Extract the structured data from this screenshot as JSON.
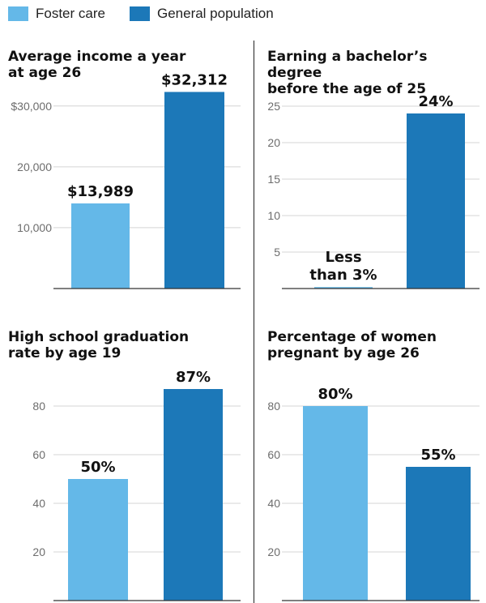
{
  "legend": {
    "items": [
      {
        "label": "Foster care",
        "color": "#64b8e8"
      },
      {
        "label": "General population",
        "color": "#1c78b8"
      }
    ]
  },
  "chart_data": [
    {
      "type": "bar",
      "title": "Average income a year at age 26",
      "title_lines": [
        "Average income a year",
        "at age 26"
      ],
      "categories": [
        "Foster care",
        "General population"
      ],
      "values": [
        13989,
        32312
      ],
      "data_labels": [
        [
          "$13,989"
        ],
        [
          "$32,312"
        ]
      ],
      "yticks": [
        {
          "value": 10000,
          "label": "10,000"
        },
        {
          "value": 20000,
          "label": "20,000"
        },
        {
          "value": 30000,
          "label": "$30,000"
        }
      ],
      "ylim": [
        0,
        36500
      ],
      "grid": true
    },
    {
      "type": "bar",
      "title": "Earning a bachelor’s degree before the age of 25",
      "title_lines": [
        "Earning a bachelor’s degree",
        "before the age of 25"
      ],
      "categories": [
        "Foster care",
        "General population"
      ],
      "values": [
        0.2,
        24
      ],
      "data_labels": [
        [
          "Less",
          "than 3%"
        ],
        [
          "24%"
        ]
      ],
      "yticks": [
        {
          "value": 5,
          "label": "5"
        },
        {
          "value": 10,
          "label": "10"
        },
        {
          "value": 15,
          "label": "15"
        },
        {
          "value": 20,
          "label": "20"
        },
        {
          "value": 25,
          "label": "25"
        }
      ],
      "ylim": [
        0,
        27
      ],
      "grid": true
    },
    {
      "type": "bar",
      "title": "High school graduation rate by age 19",
      "title_lines": [
        "High school graduation",
        "rate by age 19"
      ],
      "categories": [
        "Foster care",
        "General population"
      ],
      "values": [
        50,
        87
      ],
      "data_labels": [
        [
          "50%"
        ],
        [
          "87%"
        ]
      ],
      "yticks": [
        {
          "value": 20,
          "label": "20"
        },
        {
          "value": 40,
          "label": "40"
        },
        {
          "value": 60,
          "label": "60"
        },
        {
          "value": 80,
          "label": "80"
        }
      ],
      "ylim": [
        0,
        92
      ],
      "grid": true
    },
    {
      "type": "bar",
      "title": "Percentage of women pregnant by age 26",
      "title_lines": [
        "Percentage of women",
        "pregnant by age 26"
      ],
      "categories": [
        "Foster care",
        "General population"
      ],
      "values": [
        80,
        55
      ],
      "data_labels": [
        [
          "80%"
        ],
        [
          "55%"
        ]
      ],
      "yticks": [
        {
          "value": 20,
          "label": "20"
        },
        {
          "value": 40,
          "label": "40"
        },
        {
          "value": 60,
          "label": "60"
        },
        {
          "value": 80,
          "label": "80"
        }
      ],
      "ylim": [
        0,
        92
      ],
      "grid": true
    }
  ]
}
